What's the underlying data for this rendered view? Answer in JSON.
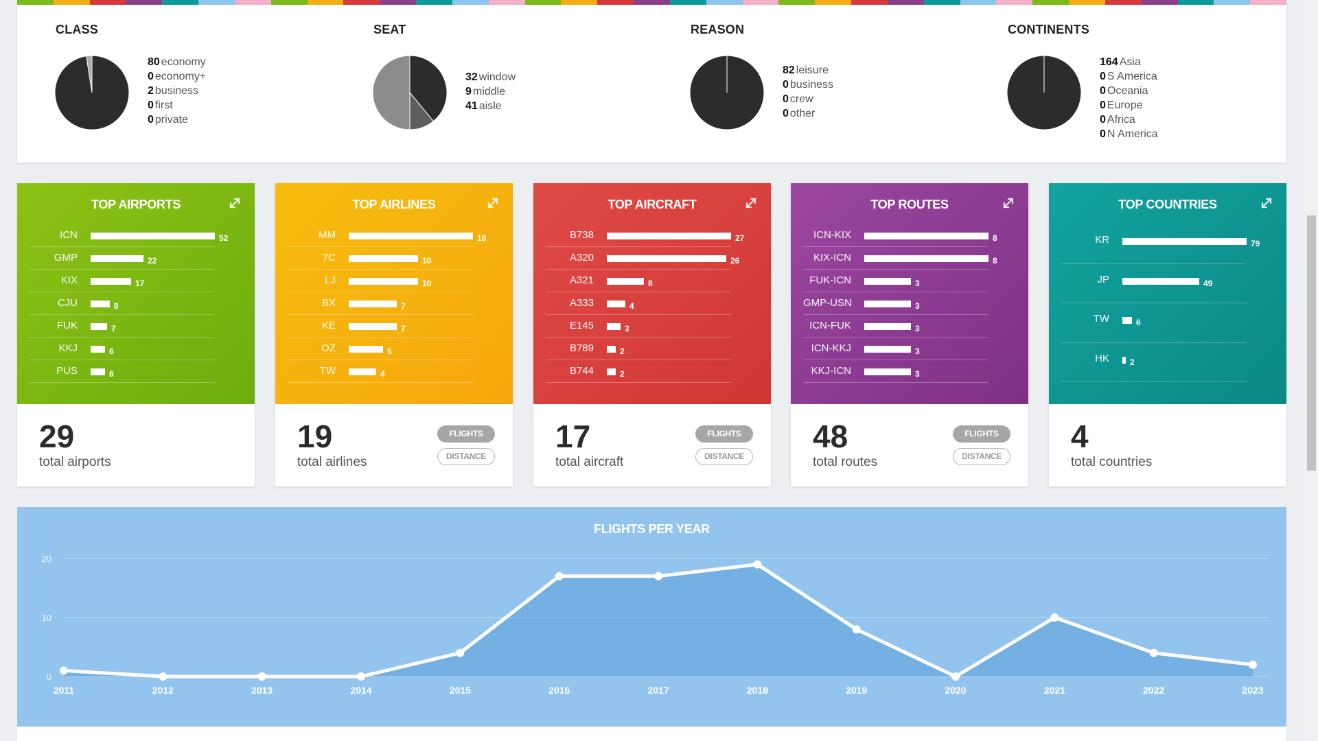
{
  "summary": {
    "stripe_colors": [
      "#7cba1a",
      "#f4ad13",
      "#d9393b",
      "#8c3f8c",
      "#0d9b99",
      "#8ec5ef",
      "#f3b0c8",
      "#7cba1a",
      "#f4ad13",
      "#d9393b",
      "#8c3f8c",
      "#0d9b99",
      "#8ec5ef",
      "#f3b0c8",
      "#7cba1a",
      "#f4ad13",
      "#d9393b",
      "#8c3f8c",
      "#0d9b99",
      "#8ec5ef",
      "#f3b0c8",
      "#7cba1a",
      "#f4ad13",
      "#d9393b",
      "#8c3f8c",
      "#0d9b99",
      "#8ec5ef",
      "#f3b0c8",
      "#7cba1a",
      "#f4ad13",
      "#d9393b",
      "#8c3f8c",
      "#0d9b99",
      "#8ec5ef",
      "#f3b0c8"
    ],
    "class": {
      "title": "CLASS",
      "items": [
        {
          "value": "80",
          "label": "economy",
          "color": "#2c2c2c"
        },
        {
          "value": "0",
          "label": "economy+",
          "color": "#555555"
        },
        {
          "value": "2",
          "label": "business",
          "color": "#a9a9a9"
        },
        {
          "value": "0",
          "label": "first",
          "color": "#cccccc"
        },
        {
          "value": "0",
          "label": "private",
          "color": "#e6e6e6"
        }
      ]
    },
    "seat": {
      "title": "SEAT",
      "items": [
        {
          "value": "32",
          "label": "window",
          "color": "#2c2c2c"
        },
        {
          "value": "9",
          "label": "middle",
          "color": "#5f5f5f"
        },
        {
          "value": "41",
          "label": "aisle",
          "color": "#8c8c8c"
        }
      ]
    },
    "reason": {
      "title": "REASON",
      "items": [
        {
          "value": "82",
          "label": "leisure",
          "color": "#2c2c2c"
        },
        {
          "value": "0",
          "label": "business",
          "color": "#555555"
        },
        {
          "value": "0",
          "label": "crew",
          "color": "#a9a9a9"
        },
        {
          "value": "0",
          "label": "other",
          "color": "#cccccc"
        }
      ]
    },
    "continents": {
      "title": "CONTINENTS",
      "items": [
        {
          "value": "164",
          "label": "Asia",
          "color": "#2c2c2c"
        },
        {
          "value": "0",
          "label": "S America",
          "color": "#555555"
        },
        {
          "value": "0",
          "label": "Oceania",
          "color": "#777777"
        },
        {
          "value": "0",
          "label": "Europe",
          "color": "#999999"
        },
        {
          "value": "0",
          "label": "Africa",
          "color": "#bbbbbb"
        },
        {
          "value": "0",
          "label": "N America",
          "color": "#dddddd"
        }
      ]
    }
  },
  "cards": [
    {
      "title": "TOP AIRPORTS",
      "color_a": "#8dc215",
      "color_b": "#6cad0f",
      "total": "29",
      "total_label": "total airports",
      "buttons": false,
      "rows": [
        {
          "label": "ICN",
          "value": 52
        },
        {
          "label": "GMP",
          "value": 22
        },
        {
          "label": "KIX",
          "value": 17
        },
        {
          "label": "CJU",
          "value": 8
        },
        {
          "label": "FUK",
          "value": 7
        },
        {
          "label": "KKJ",
          "value": 6
        },
        {
          "label": "PUS",
          "value": 6
        }
      ]
    },
    {
      "title": "TOP AIRLINES",
      "color_a": "#f7bd0f",
      "color_b": "#f5a70d",
      "total": "19",
      "total_label": "total airlines",
      "buttons": true,
      "rows": [
        {
          "label": "MM",
          "value": 18
        },
        {
          "label": "7C",
          "value": 10
        },
        {
          "label": "LJ",
          "value": 10
        },
        {
          "label": "BX",
          "value": 7
        },
        {
          "label": "KE",
          "value": 7
        },
        {
          "label": "OZ",
          "value": 5
        },
        {
          "label": "TW",
          "value": 4
        }
      ]
    },
    {
      "title": "TOP AIRCRAFT",
      "color_a": "#e04b47",
      "color_b": "#cf3633",
      "total": "17",
      "total_label": "total aircraft",
      "buttons": true,
      "rows": [
        {
          "label": "B738",
          "value": 27
        },
        {
          "label": "A320",
          "value": 26
        },
        {
          "label": "A321",
          "value": 8
        },
        {
          "label": "A333",
          "value": 4
        },
        {
          "label": "E145",
          "value": 3
        },
        {
          "label": "B789",
          "value": 2
        },
        {
          "label": "B744",
          "value": 2
        }
      ]
    },
    {
      "title": "TOP ROUTES",
      "color_a": "#9b47a0",
      "color_b": "#7e3184",
      "total": "48",
      "total_label": "total routes",
      "buttons": true,
      "rows": [
        {
          "label": "ICN-KIX",
          "value": 8
        },
        {
          "label": "KIX-ICN",
          "value": 8
        },
        {
          "label": "FUK-ICN",
          "value": 3
        },
        {
          "label": "GMP-USN",
          "value": 3
        },
        {
          "label": "ICN-FUK",
          "value": 3
        },
        {
          "label": "ICN-KKJ",
          "value": 3
        },
        {
          "label": "KKJ-ICN",
          "value": 3
        }
      ]
    },
    {
      "title": "TOP COUNTRIES",
      "color_a": "#13a39f",
      "color_b": "#0a8886",
      "total": "4",
      "total_label": "total countries",
      "buttons": false,
      "rows": [
        {
          "label": "KR",
          "value": 79
        },
        {
          "label": "JP",
          "value": 49
        },
        {
          "label": "TW",
          "value": 6
        },
        {
          "label": "HK",
          "value": 2
        }
      ]
    }
  ],
  "buttons": {
    "flights": "FLIGHTS",
    "distance": "DISTANCE"
  },
  "chart_data": {
    "type": "area",
    "title": "FLIGHTS PER YEAR",
    "x": [
      "2011",
      "2012",
      "2013",
      "2014",
      "2015",
      "2016",
      "2017",
      "2018",
      "2019",
      "2020",
      "2021",
      "2022",
      "2023"
    ],
    "values": [
      1,
      0,
      0,
      0,
      4,
      17,
      17,
      19,
      8,
      0,
      10,
      4,
      2
    ],
    "ylim": [
      0,
      20
    ],
    "yticks": [
      0,
      10,
      20
    ],
    "grid": true,
    "xlabel": "",
    "ylabel": ""
  }
}
